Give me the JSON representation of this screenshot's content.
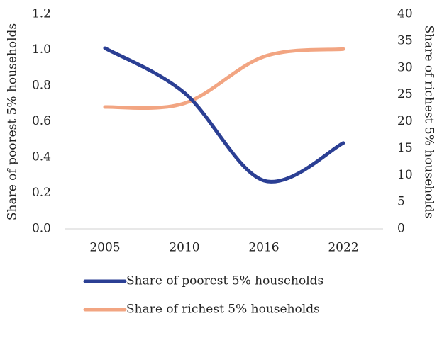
{
  "chart_data": {
    "type": "line",
    "categories": [
      "2005",
      "2010",
      "2016",
      "2022"
    ],
    "series": [
      {
        "name": "Share of poorest 5% households",
        "color": "#2b3f94",
        "values": [
          1.01,
          0.76,
          0.27,
          0.48
        ]
      },
      {
        "name": "Share of richest 5% households",
        "color": "#f2a582",
        "values": [
          22.7,
          23.4,
          32.1,
          33.5
        ],
        "axis": "y2"
      }
    ],
    "ylabel": "Share of poorest 5% households",
    "y2label": "Share of richest 5% households",
    "ylim": [
      0,
      1.2
    ],
    "yticks": [
      {
        "value": 0,
        "label": "0.0"
      },
      0.2,
      0.4,
      0.6,
      0.8,
      {
        "value": 1,
        "label": "1.0"
      },
      1.2
    ],
    "y2lim": [
      0,
      40
    ],
    "y2ticks": [
      0,
      5,
      10,
      15,
      20,
      25,
      30,
      35,
      40
    ],
    "smooth": true,
    "grid": false,
    "legend": "bottom"
  }
}
